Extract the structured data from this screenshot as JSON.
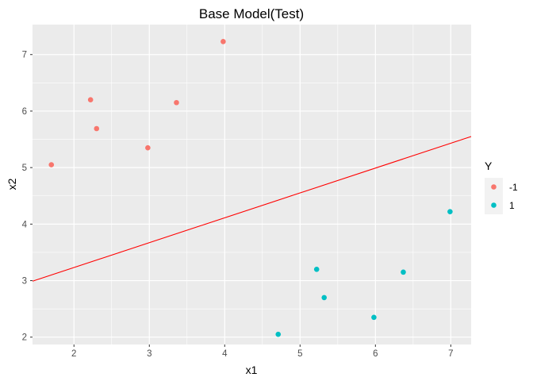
{
  "chart_data": {
    "type": "scatter",
    "title": "Base Model(Test)",
    "xlabel": "x1",
    "ylabel": "x2",
    "xlim": [
      1.45,
      7.27
    ],
    "ylim": [
      1.87,
      7.53
    ],
    "xticks": [
      2,
      3,
      4,
      5,
      6,
      7
    ],
    "yticks": [
      2,
      3,
      4,
      5,
      6,
      7
    ],
    "grid": true,
    "legend": {
      "title": "Y",
      "placement": "right",
      "entries": [
        {
          "label": "-1",
          "color": "#F8766D"
        },
        {
          "label": "1",
          "color": "#00BFC4"
        }
      ]
    },
    "series": [
      {
        "name": "-1",
        "color": "#F8766D",
        "points": [
          {
            "x": 1.7,
            "y": 5.05
          },
          {
            "x": 2.22,
            "y": 6.2
          },
          {
            "x": 2.3,
            "y": 5.69
          },
          {
            "x": 2.98,
            "y": 5.35
          },
          {
            "x": 3.36,
            "y": 6.15
          },
          {
            "x": 3.98,
            "y": 7.23
          }
        ]
      },
      {
        "name": "1",
        "color": "#00BFC4",
        "points": [
          {
            "x": 4.71,
            "y": 2.05
          },
          {
            "x": 5.22,
            "y": 3.2
          },
          {
            "x": 5.32,
            "y": 2.7
          },
          {
            "x": 5.98,
            "y": 2.35
          },
          {
            "x": 6.37,
            "y": 3.15
          },
          {
            "x": 6.99,
            "y": 4.22
          }
        ]
      }
    ],
    "decision_line": {
      "color": "#FF0000",
      "x1": 1.45,
      "y1": 2.99,
      "x2": 7.27,
      "y2": 5.55
    }
  },
  "colors": {
    "panel_background": "#EBEBEB",
    "grid_major": "#FFFFFF"
  }
}
